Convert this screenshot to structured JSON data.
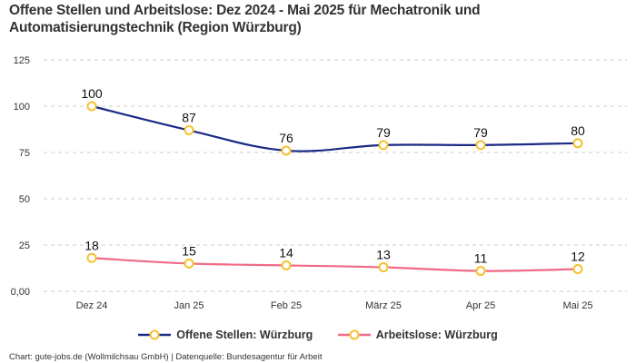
{
  "chart_data": {
    "type": "line",
    "title": "Offene Stellen und Arbeitslose: Dez 2024 - Mai 2025 für Mechatronik und Automatisierungstechnik (Region Würzburg)",
    "categories": [
      "Dez 24",
      "Jan 25",
      "Feb 25",
      "März 25",
      "Apr 25",
      "Mai 25"
    ],
    "series": [
      {
        "name": "Offene Stellen: Würzburg",
        "values": [
          100,
          87,
          76,
          79,
          79,
          80
        ],
        "color": "#1b2a86",
        "marker_color": "#f5c12e"
      },
      {
        "name": "Arbeitslose: Würzburg",
        "values": [
          18,
          15,
          14,
          13,
          11,
          12
        ],
        "color": "#f06a85",
        "marker_color": "#f5c12e"
      }
    ],
    "y_ticks": [
      0,
      25,
      50,
      75,
      100,
      125
    ],
    "y_tick_labels": [
      "0,00",
      "25",
      "50",
      "75",
      "100",
      "125"
    ],
    "ylim": [
      0,
      125
    ],
    "xlabel": "",
    "ylabel": "",
    "grid": true,
    "legend_position": "bottom-center"
  },
  "footer": "Chart: gute-jobs.de (Wollmilchsau GmbH) | Datenquelle: Bundesagentur für Arbeit"
}
